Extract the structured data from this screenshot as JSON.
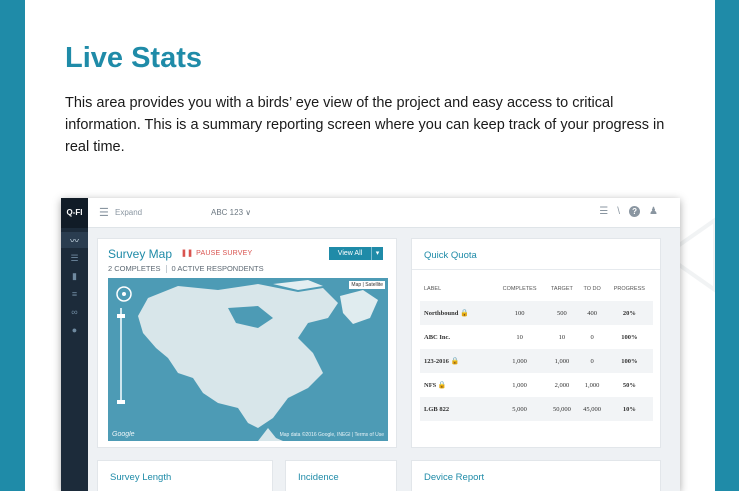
{
  "page": {
    "title": "Live Stats",
    "description": "This area provides you with a birds’ eye view of the project and easy access to critical information. This is a summary reporting screen where you can keep track of your progress in real time."
  },
  "app": {
    "logo": "Q-FI",
    "top": {
      "expand_label": "Expand",
      "project_selector": "ABC 123 ∨"
    },
    "map_card": {
      "title": "Survey Map",
      "pause_label": "PAUSE SURVEY",
      "completes": "2 COMPLETES",
      "active": "0 ACTIVE RESPONDENTS",
      "view_all": "View All",
      "google": "Google",
      "map_data": "Map data ©2016 Google, INEGI | Terms of Use",
      "map_type": "Map | Satellite"
    },
    "quota_card": {
      "title": "Quick Quota",
      "headers": [
        "LABEL",
        "COMPLETES",
        "TARGET",
        "TO DO",
        "PROGRESS"
      ],
      "rows": [
        {
          "label": "Northbound",
          "locked": true,
          "completes": "100",
          "target": "500",
          "todo": "400",
          "progress": "20%"
        },
        {
          "label": "ABC Inc.",
          "locked": false,
          "completes": "10",
          "target": "10",
          "todo": "0",
          "progress": "100%"
        },
        {
          "label": "123-2016",
          "locked": true,
          "completes": "1,000",
          "target": "1,000",
          "todo": "0",
          "progress": "100%"
        },
        {
          "label": "NFS",
          "locked": true,
          "completes": "1,000",
          "target": "2,000",
          "todo": "1,000",
          "progress": "50%"
        },
        {
          "label": "LGB 822",
          "locked": false,
          "completes": "5,000",
          "target": "50,000",
          "todo": "45,000",
          "progress": "10%"
        }
      ]
    },
    "bottom_cards": {
      "survey_length": "Survey Length",
      "incidence": "Incidence",
      "device_report": "Device Report"
    }
  },
  "colors": {
    "accent": "#1f8ba8",
    "danger": "#d9534f",
    "sidebar": "#1c2b3a"
  }
}
